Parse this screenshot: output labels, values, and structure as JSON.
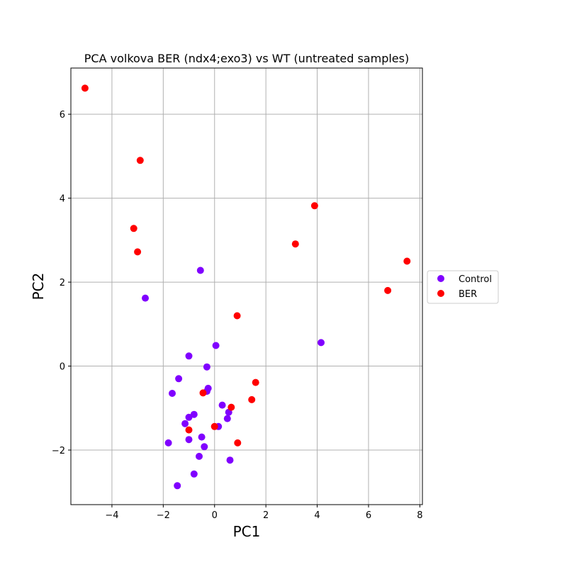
{
  "chart_data": {
    "type": "scatter",
    "title": "PCA volkova BER (ndx4;exo3) vs WT (untreated samples)",
    "xlabel": "PC1",
    "ylabel": "PC2",
    "xlim": [
      -5.6,
      8.1
    ],
    "ylim": [
      -3.3,
      7.1
    ],
    "x_ticks": [
      -4,
      -2,
      0,
      2,
      4,
      6,
      8
    ],
    "y_ticks": [
      -2,
      0,
      2,
      4,
      6
    ],
    "grid": true,
    "legend_position": "right-outside",
    "series": [
      {
        "name": "Control",
        "color": "#8000ff",
        "points": [
          [
            -0.55,
            2.28
          ],
          [
            -2.7,
            1.62
          ],
          [
            4.15,
            0.56
          ],
          [
            0.05,
            0.49
          ],
          [
            -1.0,
            0.24
          ],
          [
            -0.3,
            -0.02
          ],
          [
            -1.4,
            -0.3
          ],
          [
            -1.65,
            -0.65
          ],
          [
            -0.25,
            -0.53
          ],
          [
            -0.3,
            -0.6
          ],
          [
            0.3,
            -0.93
          ],
          [
            0.55,
            -1.1
          ],
          [
            0.5,
            -1.25
          ],
          [
            -0.8,
            -1.15
          ],
          [
            -1.0,
            -1.22
          ],
          [
            -1.15,
            -1.37
          ],
          [
            0.15,
            -1.44
          ],
          [
            -0.5,
            -1.69
          ],
          [
            -1.0,
            -1.75
          ],
          [
            -1.8,
            -1.83
          ],
          [
            -0.4,
            -1.92
          ],
          [
            -0.6,
            -2.15
          ],
          [
            0.6,
            -2.24
          ],
          [
            -0.8,
            -2.57
          ],
          [
            -1.45,
            -2.85
          ]
        ]
      },
      {
        "name": "BER",
        "color": "#ff0000",
        "points": [
          [
            -5.05,
            6.62
          ],
          [
            -2.9,
            4.9
          ],
          [
            3.9,
            3.82
          ],
          [
            -3.15,
            3.28
          ],
          [
            3.15,
            2.91
          ],
          [
            -3.0,
            2.72
          ],
          [
            7.5,
            2.5
          ],
          [
            6.75,
            1.8
          ],
          [
            0.88,
            1.2
          ],
          [
            1.6,
            -0.39
          ],
          [
            -0.45,
            -0.64
          ],
          [
            1.45,
            -0.8
          ],
          [
            0.65,
            -0.98
          ],
          [
            0.0,
            -1.44
          ],
          [
            -1.0,
            -1.52
          ],
          [
            0.9,
            -1.83
          ]
        ]
      }
    ]
  }
}
